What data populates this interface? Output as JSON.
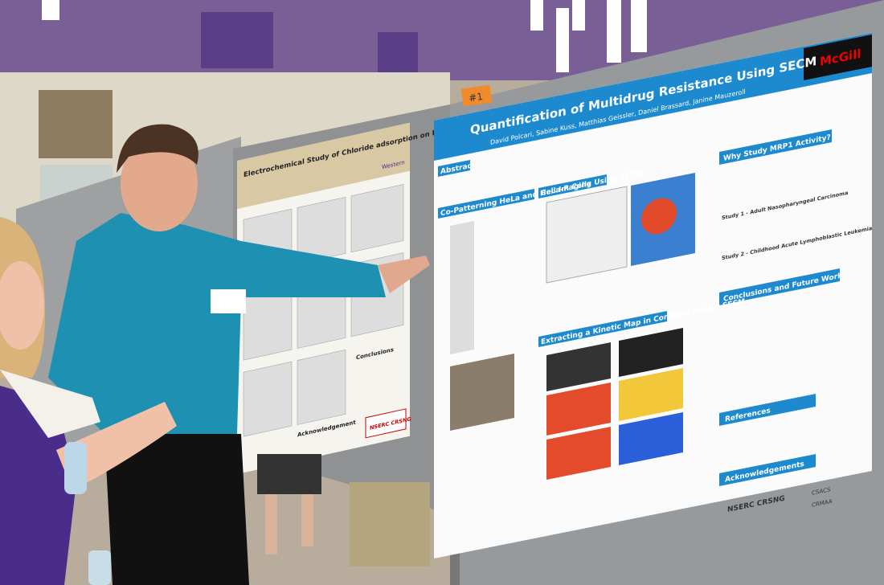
{
  "main_poster": {
    "title": "Quantification of Multidrug Resistance Using SECM",
    "logo": "McGill",
    "authors": "David Polcari, Sabine Kuss, Matthias Geissler, Daniel Brassard, Janine Mauzeroll",
    "sections": [
      "Abstract",
      "Co-Patterning HeLa and HeLa-R Cells",
      "Cell Imaging Using SECM",
      "Why Study MRP1 Activity?",
      "Conclusions and Future Work",
      "Extracting a Kinetic Map in Constant Height SECM",
      "References",
      "Acknowledgements"
    ],
    "study_1": "Study 1 - Adult Nasopharyngeal Carcinoma",
    "study_2": "Study 2 - Childhood Acute Lymphoblastic Leukemia",
    "sponsors": [
      "NSERC CRSNG",
      "CSACS",
      "CRMAA"
    ]
  },
  "board_number": "#1",
  "second_poster": {
    "title": "Electrochemical Study of Chloride adsorption on Polycrystalline Copper under Anoxic Condition",
    "logo": "Western",
    "sections": [
      "Conclusions",
      "Acknowledgement"
    ],
    "sponsor": "NSERC CRSNG"
  }
}
